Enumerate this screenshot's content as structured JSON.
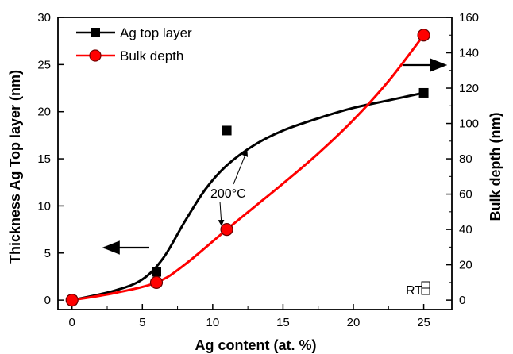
{
  "chart_data": {
    "type": "line",
    "xlabel": "Ag content (at. %)",
    "ylabel_left": "Thickness Ag Top  layer (nm)",
    "ylabel_right": "Bulk depth (nm)",
    "xlim": [
      -1,
      27
    ],
    "ylim_left": [
      -1,
      30
    ],
    "ylim_right": [
      -5.333,
      160
    ],
    "xticks": [
      0,
      5,
      10,
      15,
      20,
      25
    ],
    "yticks_left": [
      0,
      5,
      10,
      15,
      20,
      25,
      30
    ],
    "yticks_right": [
      0,
      20,
      40,
      60,
      80,
      100,
      120,
      140,
      160
    ],
    "grid": false,
    "legend_position": "top-left",
    "series": [
      {
        "name": "Ag top layer",
        "axis": "left",
        "color": "#000000",
        "marker": "square",
        "x": [
          0,
          6,
          11,
          25
        ],
        "y": [
          0,
          3,
          18,
          22
        ],
        "fit_curve": [
          [
            0,
            0
          ],
          [
            3,
            1
          ],
          [
            5,
            2.2
          ],
          [
            6.5,
            4.5
          ],
          [
            8,
            8.3
          ],
          [
            9.5,
            11.8
          ],
          [
            11,
            14.3
          ],
          [
            13,
            16.5
          ],
          [
            15,
            18.0
          ],
          [
            17.5,
            19.3
          ],
          [
            20,
            20.4
          ],
          [
            22.5,
            21.2
          ],
          [
            25,
            22
          ]
        ]
      },
      {
        "name": "Bulk depth",
        "axis": "right",
        "color": "#ff0000",
        "marker": "circle",
        "x": [
          0,
          6,
          11,
          25
        ],
        "y": [
          0,
          10,
          40,
          150
        ],
        "fit_curve": [
          [
            0,
            0
          ],
          [
            3,
            4
          ],
          [
            6,
            10
          ],
          [
            8,
            20
          ],
          [
            11,
            40
          ],
          [
            13,
            53
          ],
          [
            15,
            66
          ],
          [
            17.5,
            83
          ],
          [
            20,
            102
          ],
          [
            22.5,
            124
          ],
          [
            25,
            150
          ]
        ]
      }
    ],
    "annotations": {
      "temperature": "200°C",
      "room_temperature": "RT"
    }
  }
}
